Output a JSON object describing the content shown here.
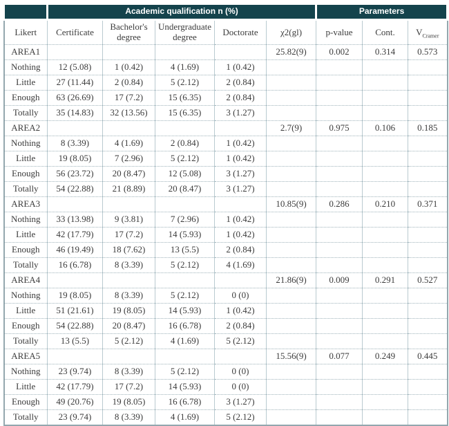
{
  "colors": {
    "header_bg": "#14434c",
    "header_text": "#ffffff",
    "body_text": "#3b3b3b",
    "grid_border": "#b9cad0",
    "outer_border": "#93a7ae"
  },
  "header": {
    "corner": "",
    "group_qualification": "Academic qualification n (%)",
    "group_parameters": "Parameters"
  },
  "columns": {
    "likert": "Likert",
    "certificate": "Certificate",
    "bachelor": "Bachelor's degree",
    "undergraduate": "Undergraduate degree",
    "doctorate": "Doctorate",
    "chi2": "χ2(gl)",
    "p_value": "p-value",
    "cont": "Cont.",
    "v": "V",
    "v_sub": "Cramer"
  },
  "areas": [
    {
      "name": "AREA1",
      "chi2": "25.82(9)",
      "p_value": "0.002",
      "cont": "0.314",
      "v_cramer": "0.573",
      "rows": [
        {
          "likert": "Nothing",
          "certificate": "12 (5.08)",
          "bachelor": "1 (0.42)",
          "undergraduate": "4 (1.69)",
          "doctorate": "1 (0.42)"
        },
        {
          "likert": "Little",
          "certificate": "27 (11.44)",
          "bachelor": "2 (0.84)",
          "undergraduate": "5 (2.12)",
          "doctorate": "2 (0.84)"
        },
        {
          "likert": "Enough",
          "certificate": "63 (26.69)",
          "bachelor": "17 (7.2)",
          "undergraduate": "15 (6.35)",
          "doctorate": "2 (0.84)"
        },
        {
          "likert": "Totally",
          "certificate": "35 (14.83)",
          "bachelor": "32 (13.56)",
          "undergraduate": "15 (6.35)",
          "doctorate": "3 (1.27)"
        }
      ]
    },
    {
      "name": "AREA2",
      "chi2": "2.7(9)",
      "p_value": "0.975",
      "cont": "0.106",
      "v_cramer": "0.185",
      "rows": [
        {
          "likert": "Nothing",
          "certificate": "8 (3.39)",
          "bachelor": "4 (1.69)",
          "undergraduate": "2 (0.84)",
          "doctorate": "1 (0.42)"
        },
        {
          "likert": "Little",
          "certificate": "19 (8.05)",
          "bachelor": "7 (2.96)",
          "undergraduate": "5 (2.12)",
          "doctorate": "1 (0.42)"
        },
        {
          "likert": "Enough",
          "certificate": "56 (23.72)",
          "bachelor": "20 (8.47)",
          "undergraduate": "12 (5.08)",
          "doctorate": "3 (1.27)"
        },
        {
          "likert": "Totally",
          "certificate": "54 (22.88)",
          "bachelor": "21 (8.89)",
          "undergraduate": "20 (8.47)",
          "doctorate": "3 (1.27)"
        }
      ]
    },
    {
      "name": "AREA3",
      "chi2": "10.85(9)",
      "p_value": "0.286",
      "cont": "0.210",
      "v_cramer": "0.371",
      "rows": [
        {
          "likert": "Nothing",
          "certificate": "33 (13.98)",
          "bachelor": "9 (3.81)",
          "undergraduate": "7 (2.96)",
          "doctorate": "1 (0.42)"
        },
        {
          "likert": "Little",
          "certificate": "42 (17.79)",
          "bachelor": "17 (7.2)",
          "undergraduate": "14 (5.93)",
          "doctorate": "1 (0.42)"
        },
        {
          "likert": "Enough",
          "certificate": "46 (19.49)",
          "bachelor": "18 (7.62)",
          "undergraduate": "13 (5.5)",
          "doctorate": "2 (0.84)"
        },
        {
          "likert": "Totally",
          "certificate": "16 (6.78)",
          "bachelor": "8 (3.39)",
          "undergraduate": "5 (2.12)",
          "doctorate": "4 (1.69)"
        }
      ]
    },
    {
      "name": "AREA4",
      "chi2": "21.86(9)",
      "p_value": "0.009",
      "cont": "0.291",
      "v_cramer": "0.527",
      "rows": [
        {
          "likert": "Nothing",
          "certificate": "19 (8.05)",
          "bachelor": "8 (3.39)",
          "undergraduate": "5 (2.12)",
          "doctorate": "0 (0)"
        },
        {
          "likert": "Little",
          "certificate": "51 (21.61)",
          "bachelor": "19 (8.05)",
          "undergraduate": "14 (5.93)",
          "doctorate": "1 (0.42)"
        },
        {
          "likert": "Enough",
          "certificate": "54 (22.88)",
          "bachelor": "20 (8.47)",
          "undergraduate": "16 (6.78)",
          "doctorate": "2 (0.84)"
        },
        {
          "likert": "Totally",
          "certificate": "13 (5.5)",
          "bachelor": "5 (2.12)",
          "undergraduate": "4 (1.69)",
          "doctorate": "5 (2.12)"
        }
      ]
    },
    {
      "name": "AREA5",
      "chi2": "15.56(9)",
      "p_value": "0.077",
      "cont": "0.249",
      "v_cramer": "0.445",
      "rows": [
        {
          "likert": "Nothing",
          "certificate": "23 (9.74)",
          "bachelor": "8 (3.39)",
          "undergraduate": "5 (2.12)",
          "doctorate": "0 (0)"
        },
        {
          "likert": "Little",
          "certificate": "42 (17.79)",
          "bachelor": "17 (7.2)",
          "undergraduate": "14 (5.93)",
          "doctorate": "0 (0)"
        },
        {
          "likert": "Enough",
          "certificate": "49 (20.76)",
          "bachelor": "19 (8.05)",
          "undergraduate": "16 (6.78)",
          "doctorate": "3 (1.27)"
        },
        {
          "likert": "Totally",
          "certificate": "23 (9.74)",
          "bachelor": "8 (3.39)",
          "undergraduate": "4 (1.69)",
          "doctorate": "5 (2.12)"
        }
      ]
    }
  ]
}
